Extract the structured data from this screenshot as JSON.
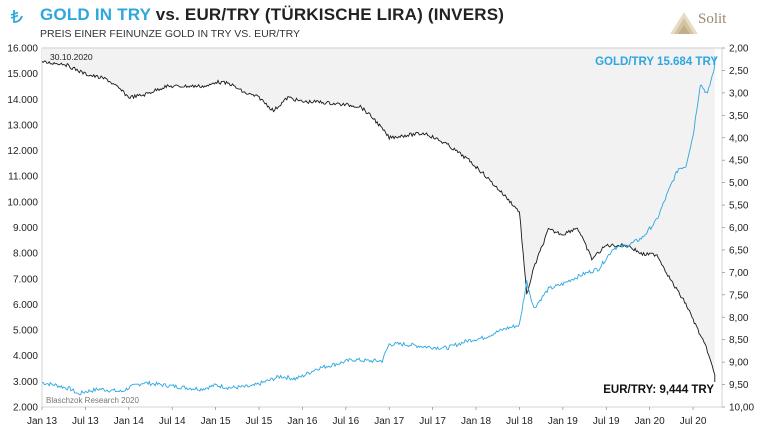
{
  "header": {
    "title_part1": "GOLD IN TRY",
    "title_part2": " vs. EUR/TRY (TÜRKISCHE LIRA) (INVERS)",
    "subtitle": "PREIS EINER FEINUNZE GOLD IN TRY VS. EUR/TRY",
    "logo_text": "Solit",
    "currency_icon": "lira-sign-icon"
  },
  "colors": {
    "gold": "#2ea7df",
    "eurtry": "#1a1a1a",
    "shade": "#f2f2f2"
  },
  "chart_data": {
    "type": "line",
    "date_annotation": "30.10.2020",
    "source": "Blaschzok Research 2020",
    "xticks": [
      "Jan 13",
      "Jul 13",
      "Jan 14",
      "Jul 14",
      "Jan 15",
      "Jul 15",
      "Jan 16",
      "Jul 16",
      "Jan 17",
      "Jul 17",
      "Jan 18",
      "Jul 18",
      "Jan 19",
      "Jul 19",
      "Jan 20",
      "Jul 20"
    ],
    "xlim": [
      "2013-01",
      "2020-11"
    ],
    "left_axis": {
      "ticks": [
        "2.000",
        "3.000",
        "4.000",
        "5.000",
        "6.000",
        "7.000",
        "8.000",
        "9.000",
        "10.000",
        "11.000",
        "12.000",
        "13.000",
        "14.000",
        "15.000",
        "16.000"
      ],
      "ylim": [
        2000,
        16000
      ]
    },
    "right_axis": {
      "ticks": [
        "2,00",
        "2,50",
        "3,00",
        "3,50",
        "4,00",
        "4,50",
        "5,00",
        "5,50",
        "6,00",
        "6,50",
        "7,00",
        "7,50",
        "8,00",
        "8,50",
        "9,00",
        "9,50",
        "10,00"
      ],
      "ylim": [
        2.0,
        10.0
      ],
      "inverted": true
    },
    "series": [
      {
        "name": "GOLD/TRY 15.684 TRY",
        "axis": "left",
        "points": [
          [
            "2013-01",
            2950
          ],
          [
            "2013-03",
            2850
          ],
          [
            "2013-05",
            2700
          ],
          [
            "2013-06",
            2500
          ],
          [
            "2013-07",
            2600
          ],
          [
            "2013-09",
            2700
          ],
          [
            "2013-12",
            2600
          ],
          [
            "2014-01",
            2750
          ],
          [
            "2014-03",
            2950
          ],
          [
            "2014-06",
            2850
          ],
          [
            "2014-09",
            2750
          ],
          [
            "2014-11",
            2700
          ],
          [
            "2015-01",
            2850
          ],
          [
            "2015-03",
            2750
          ],
          [
            "2015-06",
            2800
          ],
          [
            "2015-08",
            3000
          ],
          [
            "2015-10",
            3200
          ],
          [
            "2015-12",
            3100
          ],
          [
            "2016-01",
            3200
          ],
          [
            "2016-03",
            3500
          ],
          [
            "2016-06",
            3700
          ],
          [
            "2016-08",
            3850
          ],
          [
            "2016-10",
            3800
          ],
          [
            "2016-12",
            3800
          ],
          [
            "2017-01",
            4450
          ],
          [
            "2017-03",
            4450
          ],
          [
            "2017-06",
            4350
          ],
          [
            "2017-09",
            4300
          ],
          [
            "2017-12",
            4600
          ],
          [
            "2018-02",
            4700
          ],
          [
            "2018-05",
            5050
          ],
          [
            "2018-07",
            5200
          ],
          [
            "2018-08",
            6900
          ],
          [
            "2018-09",
            5850
          ],
          [
            "2018-11",
            6600
          ],
          [
            "2019-01",
            6800
          ],
          [
            "2019-02",
            6950
          ],
          [
            "2019-04",
            7200
          ],
          [
            "2019-06",
            7400
          ],
          [
            "2019-08",
            8200
          ],
          [
            "2019-10",
            8300
          ],
          [
            "2019-12",
            8600
          ],
          [
            "2020-02",
            9300
          ],
          [
            "2020-04",
            10700
          ],
          [
            "2020-05",
            11300
          ],
          [
            "2020-06",
            11400
          ],
          [
            "2020-07",
            12600
          ],
          [
            "2020-08",
            14600
          ],
          [
            "2020-09",
            14200
          ],
          [
            "2020-10",
            15300
          ],
          [
            "2020-10",
            15684
          ]
        ]
      },
      {
        "name": "EUR/TRY: 9,444 TRY",
        "axis": "right",
        "points": [
          [
            "2013-01",
            2.32
          ],
          [
            "2013-04",
            2.35
          ],
          [
            "2013-07",
            2.58
          ],
          [
            "2013-10",
            2.7
          ],
          [
            "2013-12",
            2.95
          ],
          [
            "2014-01",
            3.1
          ],
          [
            "2014-03",
            3.05
          ],
          [
            "2014-06",
            2.86
          ],
          [
            "2014-09",
            2.85
          ],
          [
            "2014-12",
            2.85
          ],
          [
            "2015-01",
            2.75
          ],
          [
            "2015-03",
            2.8
          ],
          [
            "2015-05",
            3.0
          ],
          [
            "2015-07",
            3.1
          ],
          [
            "2015-09",
            3.4
          ],
          [
            "2015-11",
            3.1
          ],
          [
            "2016-01",
            3.2
          ],
          [
            "2016-03",
            3.2
          ],
          [
            "2016-06",
            3.25
          ],
          [
            "2016-09",
            3.3
          ],
          [
            "2016-11",
            3.6
          ],
          [
            "2017-01",
            4.0
          ],
          [
            "2017-03",
            3.95
          ],
          [
            "2017-06",
            3.9
          ],
          [
            "2017-09",
            4.15
          ],
          [
            "2017-12",
            4.5
          ],
          [
            "2018-02",
            4.8
          ],
          [
            "2018-05",
            5.3
          ],
          [
            "2018-07",
            5.65
          ],
          [
            "2018-08",
            7.5
          ],
          [
            "2018-09",
            6.9
          ],
          [
            "2018-11",
            6.05
          ],
          [
            "2019-01",
            6.15
          ],
          [
            "2019-03",
            6.0
          ],
          [
            "2019-05",
            6.7
          ],
          [
            "2019-07",
            6.4
          ],
          [
            "2019-10",
            6.4
          ],
          [
            "2019-12",
            6.6
          ],
          [
            "2020-02",
            6.6
          ],
          [
            "2020-04",
            7.2
          ],
          [
            "2020-06",
            7.7
          ],
          [
            "2020-08",
            8.4
          ],
          [
            "2020-09",
            8.75
          ],
          [
            "2020-10",
            9.3
          ],
          [
            "2020-10",
            9.444
          ]
        ]
      }
    ]
  }
}
